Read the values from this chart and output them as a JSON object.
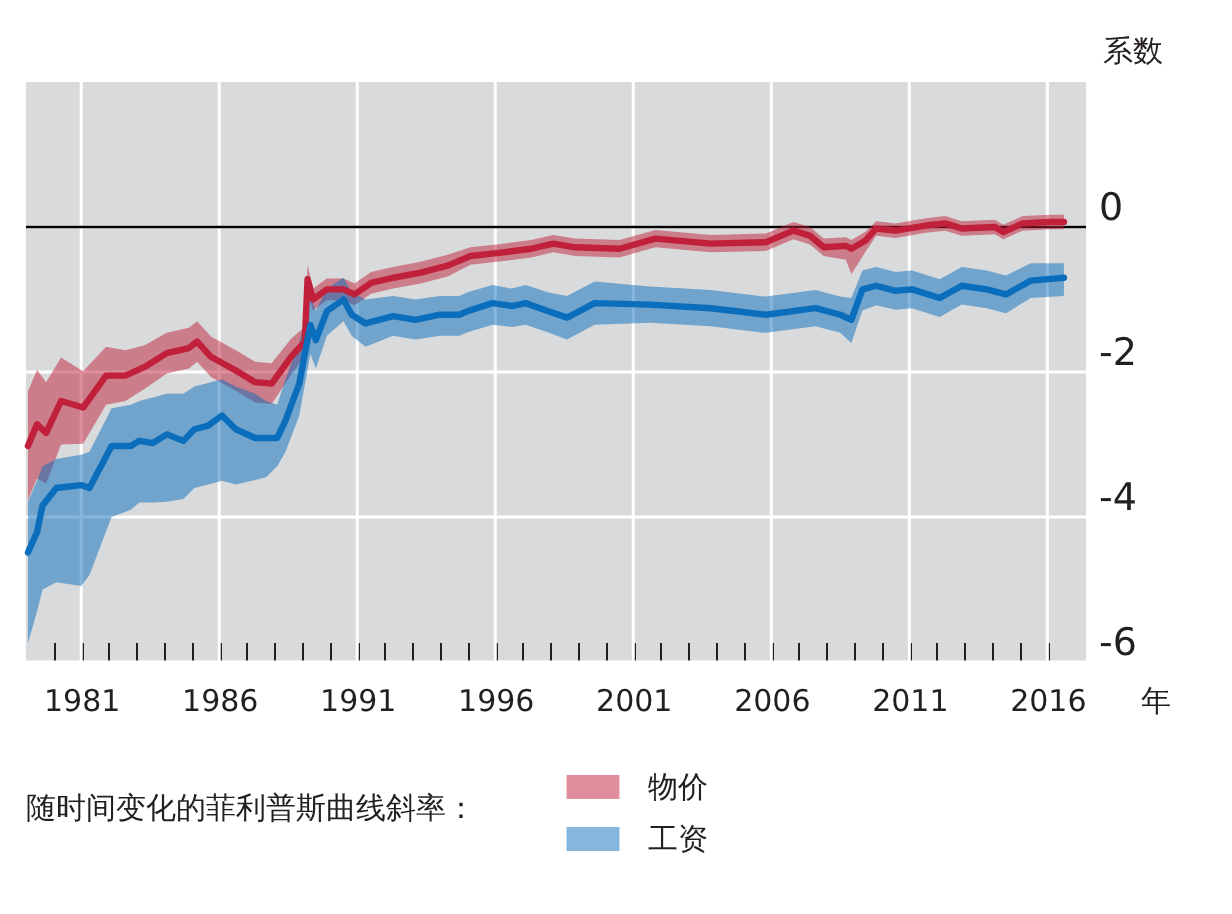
{
  "chart_data": {
    "type": "line",
    "xlabel": "年",
    "ylabel": "系数",
    "legend_title": "随时间变化的菲利普斯曲线斜率：",
    "xlim": [
      1979,
      2017.4
    ],
    "ylim": [
      -6,
      2
    ],
    "xticks": [
      {
        "value": 1980,
        "label": null
      },
      1981,
      {
        "value": 1982,
        "label": null
      },
      {
        "value": 1983,
        "label": null
      },
      {
        "value": 1984,
        "label": null
      },
      {
        "value": 1985,
        "label": null
      },
      1986,
      {
        "value": 1987,
        "label": null
      },
      {
        "value": 1988,
        "label": null
      },
      {
        "value": 1989,
        "label": null
      },
      {
        "value": 1990,
        "label": null
      },
      1991,
      {
        "value": 1992,
        "label": null
      },
      {
        "value": 1993,
        "label": null
      },
      {
        "value": 1994,
        "label": null
      },
      {
        "value": 1995,
        "label": null
      },
      1996,
      {
        "value": 1997,
        "label": null
      },
      {
        "value": 1998,
        "label": null
      },
      {
        "value": 1999,
        "label": null
      },
      {
        "value": 2000,
        "label": null
      },
      2001,
      {
        "value": 2002,
        "label": null
      },
      {
        "value": 2003,
        "label": null
      },
      {
        "value": 2004,
        "label": null
      },
      {
        "value": 2005,
        "label": null
      },
      2006,
      {
        "value": 2007,
        "label": null
      },
      {
        "value": 2008,
        "label": null
      },
      {
        "value": 2009,
        "label": null
      },
      {
        "value": 2010,
        "label": null
      },
      2011,
      {
        "value": 2012,
        "label": null
      },
      {
        "value": 2013,
        "label": null
      },
      {
        "value": 2014,
        "label": null
      },
      {
        "value": 2015,
        "label": null
      },
      2016
    ],
    "yticks": [
      0,
      -2,
      -4,
      -6
    ],
    "grid": true,
    "legend": "bottom",
    "line_style": "solid",
    "ref_lines": [
      {
        "axis": "y",
        "value": 0,
        "color": "#000000"
      }
    ],
    "series": [
      {
        "name": "物价",
        "color": "#c0203a",
        "x": [
          1979.07,
          1979.4,
          1979.73,
          1980.27,
          1981.07,
          1981.9,
          1982.6,
          1983.3,
          1984.1,
          1984.9,
          1985.2,
          1985.7,
          1986.6,
          1987.3,
          1987.9,
          1988.6,
          1989.1,
          1989.2,
          1989.4,
          1989.9,
          1990.5,
          1990.9,
          1991.5,
          1992.3,
          1993.3,
          1994.3,
          1995.1,
          1996.3,
          1997.3,
          1998.1,
          1998.9,
          2000.5,
          2001.8,
          2003.8,
          2005.8,
          2006.8,
          2007.4,
          2007.9,
          2008.7,
          2008.9,
          2009.4,
          2009.8,
          2010.5,
          2011.6,
          2012.3,
          2012.9,
          2014.1,
          2014.4,
          2015.1,
          2016.1,
          2016.6
        ],
        "values": [
          -3.02,
          -2.72,
          -2.84,
          -2.4,
          -2.49,
          -2.05,
          -2.05,
          -1.93,
          -1.74,
          -1.67,
          -1.58,
          -1.79,
          -1.98,
          -2.14,
          -2.16,
          -1.79,
          -1.58,
          -0.72,
          -1.0,
          -0.86,
          -0.86,
          -0.93,
          -0.77,
          -0.7,
          -0.63,
          -0.53,
          -0.4,
          -0.35,
          -0.3,
          -0.23,
          -0.28,
          -0.3,
          -0.16,
          -0.23,
          -0.21,
          -0.05,
          -0.12,
          -0.28,
          -0.26,
          -0.3,
          -0.19,
          -0.02,
          -0.05,
          0.02,
          0.05,
          -0.02,
          0,
          -0.07,
          0.05,
          0.07,
          0.07
        ],
        "upper": [
          -2.27,
          -1.97,
          -2.14,
          -1.8,
          -1.99,
          -1.65,
          -1.7,
          -1.63,
          -1.46,
          -1.39,
          -1.3,
          -1.51,
          -1.7,
          -1.86,
          -1.88,
          -1.54,
          -1.38,
          -0.52,
          -0.85,
          -0.71,
          -0.71,
          -0.78,
          -0.62,
          -0.55,
          -0.48,
          -0.38,
          -0.28,
          -0.23,
          -0.18,
          -0.11,
          -0.16,
          -0.18,
          -0.04,
          -0.11,
          -0.09,
          0.07,
          0.0,
          -0.16,
          -0.14,
          -0.18,
          -0.07,
          0.08,
          0.05,
          0.12,
          0.15,
          0.08,
          0.1,
          0.03,
          0.15,
          0.17,
          0.17
        ],
        "lower": [
          -3.77,
          -3.47,
          -3.54,
          -3.0,
          -2.99,
          -2.45,
          -2.4,
          -2.23,
          -2.02,
          -1.95,
          -1.86,
          -2.07,
          -2.26,
          -2.42,
          -2.44,
          -2.04,
          -1.78,
          -0.92,
          -1.15,
          -1.01,
          -1.01,
          -1.08,
          -0.92,
          -0.85,
          -0.78,
          -0.68,
          -0.52,
          -0.47,
          -0.42,
          -0.35,
          -0.4,
          -0.42,
          -0.28,
          -0.35,
          -0.33,
          -0.17,
          -0.24,
          -0.4,
          -0.45,
          -0.65,
          -0.35,
          -0.12,
          -0.15,
          -0.08,
          -0.05,
          -0.12,
          -0.1,
          -0.17,
          -0.05,
          -0.03,
          -0.03
        ]
      },
      {
        "name": "工资",
        "color": "#0a6ebd",
        "x": [
          1979.07,
          1979.4,
          1979.6,
          1980.1,
          1981.0,
          1981.3,
          1982.1,
          1982.8,
          1983.1,
          1983.6,
          1984.1,
          1984.7,
          1985.1,
          1985.6,
          1986.1,
          1986.6,
          1987.3,
          1987.7,
          1988.1,
          1988.4,
          1988.9,
          1989.3,
          1989.5,
          1989.9,
          1990.5,
          1990.8,
          1991.3,
          1992.3,
          1993.1,
          1994.0,
          1994.7,
          1995.0,
          1995.9,
          1996.6,
          1997.1,
          1997.9,
          1998.6,
          1999.6,
          2001.6,
          2003.8,
          2005.8,
          2007.6,
          2008.5,
          2008.9,
          2009.3,
          2009.8,
          2010.5,
          2011.1,
          2012.1,
          2012.9,
          2013.8,
          2014.5,
          2015.4,
          2016.6
        ],
        "values": [
          -4.49,
          -4.21,
          -3.84,
          -3.6,
          -3.56,
          -3.6,
          -3.02,
          -3.02,
          -2.95,
          -2.98,
          -2.86,
          -2.95,
          -2.79,
          -2.74,
          -2.6,
          -2.79,
          -2.91,
          -2.91,
          -2.91,
          -2.67,
          -2.16,
          -1.35,
          -1.56,
          -1.16,
          -1.0,
          -1.21,
          -1.33,
          -1.23,
          -1.28,
          -1.21,
          -1.21,
          -1.16,
          -1.05,
          -1.09,
          -1.05,
          -1.16,
          -1.25,
          -1.05,
          -1.07,
          -1.12,
          -1.21,
          -1.12,
          -1.21,
          -1.28,
          -0.86,
          -0.81,
          -0.88,
          -0.86,
          -0.98,
          -0.81,
          -0.86,
          -0.93,
          -0.74,
          -0.7
        ],
        "upper": [
          -3.79,
          -3.5,
          -3.3,
          -3.2,
          -3.14,
          -3.1,
          -2.5,
          -2.45,
          -2.4,
          -2.35,
          -2.3,
          -2.3,
          -2.2,
          -2.15,
          -2.1,
          -2.2,
          -2.3,
          -2.4,
          -2.45,
          -2.1,
          -1.6,
          -0.95,
          -1.15,
          -0.85,
          -0.7,
          -0.9,
          -1.0,
          -0.95,
          -1.0,
          -0.95,
          -0.95,
          -0.9,
          -0.8,
          -0.85,
          -0.8,
          -0.9,
          -0.95,
          -0.75,
          -0.82,
          -0.87,
          -0.96,
          -0.87,
          -0.96,
          -0.98,
          -0.6,
          -0.55,
          -0.62,
          -0.6,
          -0.72,
          -0.55,
          -0.6,
          -0.67,
          -0.5,
          -0.5
        ],
        "lower": [
          -5.74,
          -5.3,
          -5.0,
          -4.9,
          -4.95,
          -4.8,
          -4.0,
          -3.9,
          -3.8,
          -3.8,
          -3.79,
          -3.75,
          -3.6,
          -3.55,
          -3.5,
          -3.55,
          -3.49,
          -3.45,
          -3.3,
          -3.1,
          -2.6,
          -1.75,
          -1.95,
          -1.5,
          -1.3,
          -1.5,
          -1.65,
          -1.5,
          -1.55,
          -1.5,
          -1.5,
          -1.45,
          -1.35,
          -1.38,
          -1.35,
          -1.45,
          -1.55,
          -1.35,
          -1.32,
          -1.37,
          -1.46,
          -1.37,
          -1.46,
          -1.6,
          -1.15,
          -1.08,
          -1.14,
          -1.12,
          -1.24,
          -1.07,
          -1.12,
          -1.19,
          -0.98,
          -0.95
        ]
      }
    ]
  }
}
